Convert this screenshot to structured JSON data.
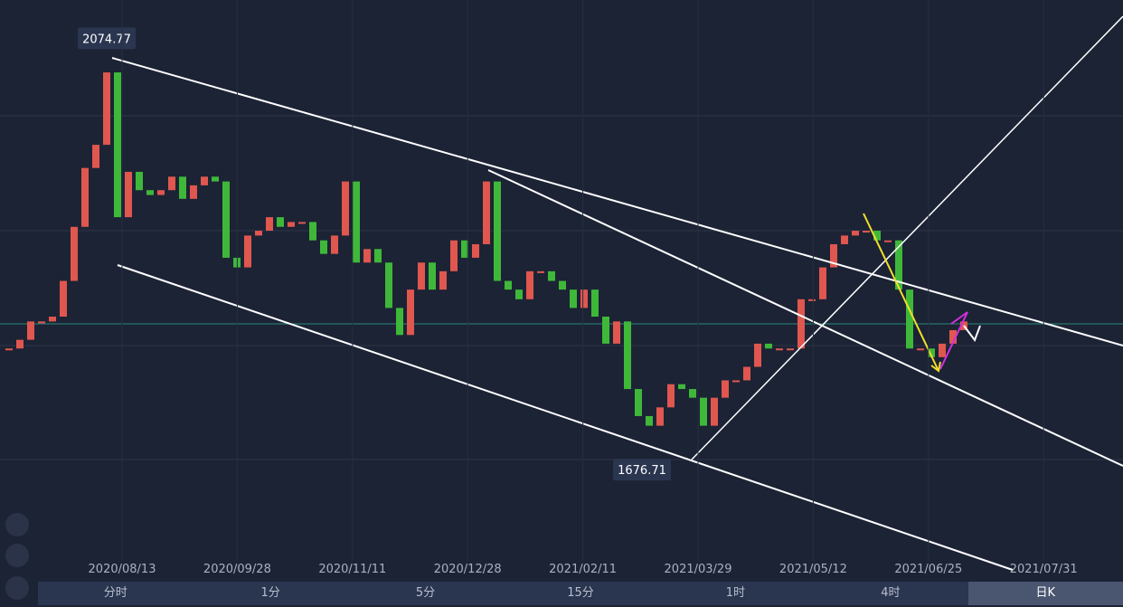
{
  "chart_data": {
    "type": "candlestick",
    "values": [
      1775,
      1784,
      1803,
      1803,
      1808,
      1845,
      1901,
      1962,
      1986,
      2061,
      1911,
      1958,
      1939,
      1934,
      1939,
      1953,
      1930,
      1944,
      1953,
      1948,
      1869,
      1859,
      1892,
      1897,
      1911,
      1901,
      1906,
      1906,
      1887,
      1873,
      1892,
      1948,
      1864,
      1878,
      1864,
      1817,
      1789,
      1836,
      1864,
      1836,
      1855,
      1887,
      1869,
      1883,
      1948,
      1845,
      1836,
      1826,
      1855,
      1855,
      1845,
      1836,
      1817,
      1836,
      1808,
      1780,
      1803,
      1733,
      1705,
      1695,
      1714,
      1738,
      1733,
      1724,
      1695,
      1724,
      1742,
      1742,
      1756,
      1780,
      1775,
      1775,
      1775,
      1826,
      1826,
      1859,
      1883,
      1892,
      1897,
      1897,
      1887,
      1887,
      1836,
      1775,
      1775,
      1766,
      1780,
      1794,
      1803
    ],
    "up_color": "#e0574f",
    "down_color": "#3fb83a",
    "ylim": [
      1555,
      2136
    ],
    "price_labels": [
      2074.77,
      1676.71
    ],
    "x_labels": [
      "2020/08/13",
      "2020/09/28",
      "2020/11/11",
      "2020/12/28",
      "2021/02/11",
      "2021/03/29",
      "2021/05/12",
      "2021/06/25",
      "2021/07/31"
    ]
  },
  "tabs": [
    "分时",
    "1分",
    "5分",
    "15分",
    "1时",
    "4时",
    "日K"
  ],
  "selected_tab": 6
}
